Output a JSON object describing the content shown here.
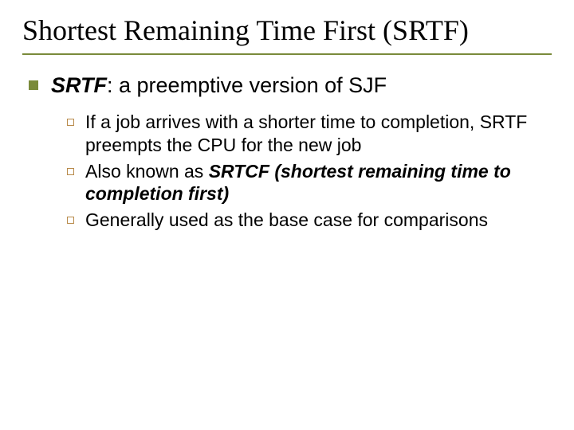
{
  "colors": {
    "title_underline": "#7a8a3a",
    "bullet_lvl1": "#7a8a3a",
    "bullet_lvl2_border": "#b88a4a",
    "text": "#000000",
    "background": "#ffffff"
  },
  "typography": {
    "title_fontsize_pt": 32,
    "lvl1_fontsize_pt": 24,
    "lvl2_fontsize_pt": 20,
    "title_family": "Times New Roman",
    "body_family": "Arial"
  },
  "title": "Shortest Remaining Time First (SRTF)",
  "main": {
    "em": "SRTF",
    "rest": ":  a preemptive version of SJF"
  },
  "subs": [
    {
      "pre": "If a job arrives with a shorter time to completion, SRTF preempts the CPU for the new job",
      "strong": "",
      "post": ""
    },
    {
      "pre": "Also known as ",
      "strong": "SRTCF (shortest remaining time to completion first)",
      "post": ""
    },
    {
      "pre": "Generally used as the base case for comparisons",
      "strong": "",
      "post": ""
    }
  ]
}
